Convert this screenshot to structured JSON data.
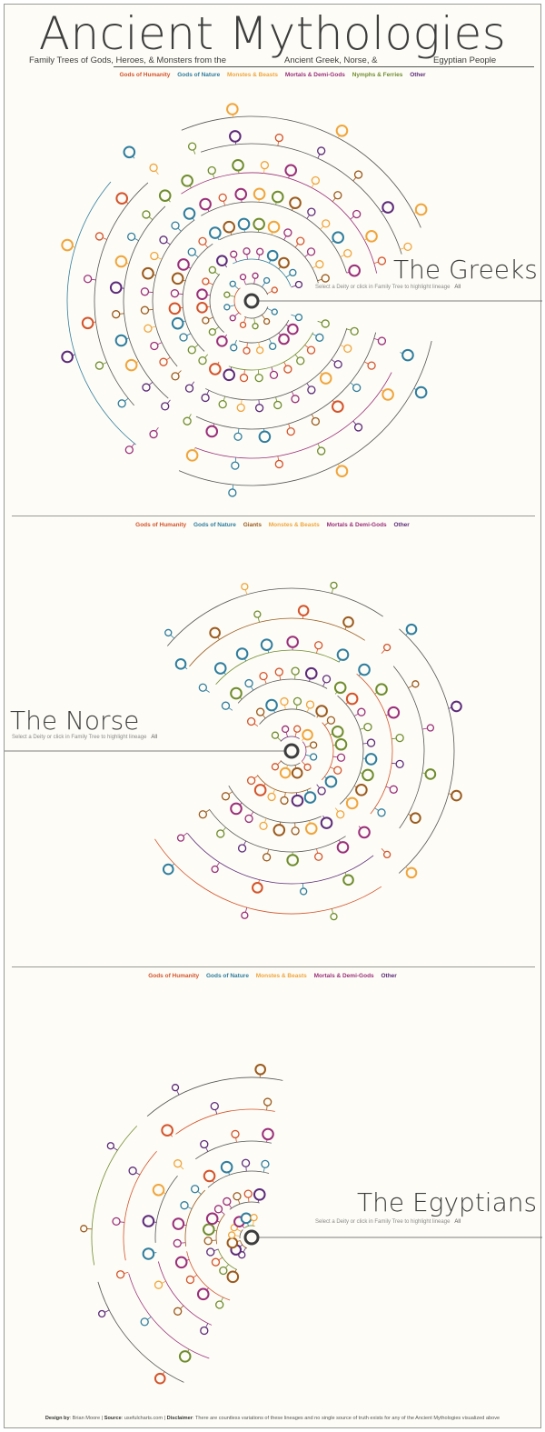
{
  "header": {
    "title": "Ancient Mythologies",
    "subtitle_left": "Family Trees of Gods, Heroes, & Monsters from the",
    "subtitle_mid": "Ancient Greek, Norse, &",
    "subtitle_right": "Egyptian People"
  },
  "colors": {
    "humanity": "#d4532b",
    "nature": "#2f7d9e",
    "monsters": "#f0a53c",
    "mortals": "#9a2f7a",
    "nymphs": "#6f8c2e",
    "giants": "#9a5a1e",
    "other": "#5c2a7a",
    "line": "#555555",
    "root": "#3d3d3d"
  },
  "greeks": {
    "title": "The Greeks",
    "hint": "Select a Deity or click in Family Tree to highlight lineage",
    "all": "All",
    "legend": [
      "Gods of Humanity",
      "Gods of Nature",
      "Monstes & Beasts",
      "Mortals & Demi-Gods",
      "Nymphs & Ferries",
      "Other"
    ]
  },
  "norse": {
    "title": "The Norse",
    "hint": "Select a Deity or click in Family Tree to highlight lineage",
    "all": "All",
    "legend": [
      "Gods of Humanity",
      "Gods of Nature",
      "Giants",
      "Monstes & Beasts",
      "Mortals & Demi-Gods",
      "Other"
    ]
  },
  "egyptians": {
    "title": "The Egyptians",
    "hint": "Select a Deity or click in Family Tree to highlight lineage",
    "all": "All",
    "legend": [
      "Gods of Humanity",
      "Gods of Nature",
      "Monstes & Beasts",
      "Mortals & Demi-Gods",
      "Other"
    ]
  },
  "footer": {
    "design_label": "Design by",
    "design_value": ": Brian Moore | ",
    "source_label": "Source",
    "source_value": ": usefulcharts.com | ",
    "disclaimer_label": "Disclaimer",
    "disclaimer_value": ": There are countless variations of these lineages and no single source of truth exists for any of the Ancient Mythologies visualized above"
  }
}
